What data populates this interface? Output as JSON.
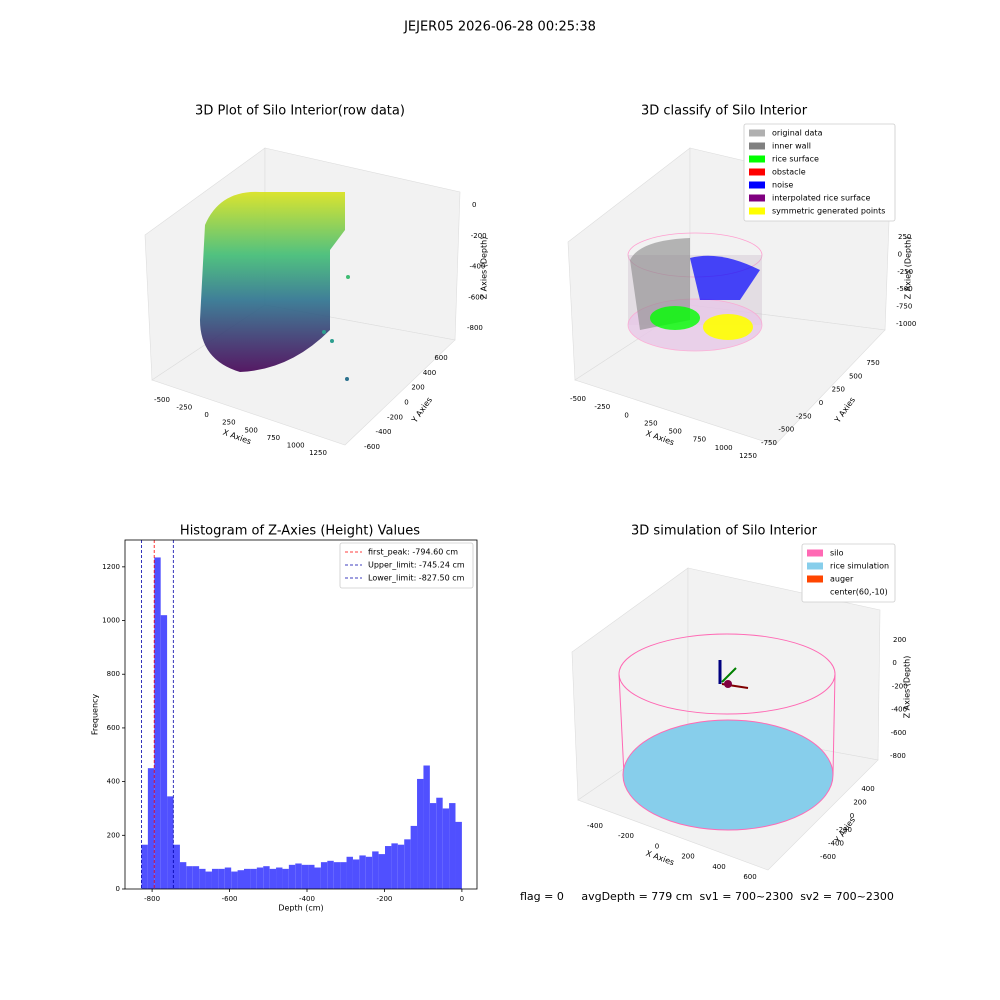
{
  "title": "JEJER05 2026-06-28 00:25:38",
  "chart_data": [
    {
      "type": "scatter3d",
      "title": "3D Plot of Silo Interior(row data)",
      "x_label": "X Axies",
      "y_label": "Y Axies",
      "z_label": "Z Axies (Depth)",
      "xticks": [
        -500,
        -250,
        0,
        250,
        500,
        750,
        1000,
        1250
      ],
      "yticks": [
        -600,
        -400,
        -200,
        0,
        200,
        400,
        600
      ],
      "zticks": [
        -800,
        -600,
        -400,
        -200,
        0
      ]
    },
    {
      "type": "scatter3d",
      "title": "3D classify of Silo Interior",
      "x_label": "X Axies",
      "y_label": "Y Axies",
      "z_label": "Z Axies (Depth)",
      "xticks": [
        -500,
        -250,
        0,
        250,
        500,
        750,
        1000,
        1250
      ],
      "yticks": [
        -750,
        -500,
        -250,
        0,
        250,
        500,
        750
      ],
      "zticks": [
        -1000,
        -750,
        -500,
        -250,
        0,
        250
      ],
      "legend": [
        {
          "name": "original data",
          "color": "#b0b0b0"
        },
        {
          "name": "inner wall",
          "color": "#808080"
        },
        {
          "name": "rice surface",
          "color": "#00ff00"
        },
        {
          "name": "obstacle",
          "color": "#ff0000"
        },
        {
          "name": "noise",
          "color": "#0000ff"
        },
        {
          "name": "interpolated rice surface",
          "color": "#800080"
        },
        {
          "name": "symmetric generated points",
          "color": "#ffff00"
        }
      ]
    },
    {
      "type": "histogram",
      "title": "Histogram of Z-Axies (Height) Values",
      "x_label": "Depth (cm)",
      "y_label": "Frequency",
      "color": "#5050ff",
      "bins": [
        -827.5,
        -810.95,
        -794.4,
        -777.85,
        -761.3,
        -744.75,
        -728.2,
        -711.65,
        -695.1,
        -678.55,
        -662.0,
        -645.45,
        -628.9,
        -612.35,
        -595.8,
        -579.25,
        -562.7,
        -546.15,
        -529.6,
        -513.05,
        -496.5,
        -479.95,
        -463.4,
        -446.85,
        -430.3,
        -413.75,
        -397.2,
        -380.65,
        -364.1,
        -347.55,
        -331.0,
        -314.45,
        -297.9,
        -281.35,
        -264.8,
        -248.25,
        -231.7,
        -215.15,
        -198.6,
        -182.05,
        -165.5,
        -148.95,
        -132.4,
        -115.85,
        -99.3,
        -82.75,
        -66.2,
        -49.65,
        -33.1,
        -16.55,
        0.0
      ],
      "counts": [
        165,
        450,
        1235,
        1020,
        345,
        165,
        100,
        85,
        85,
        75,
        65,
        75,
        75,
        80,
        65,
        70,
        75,
        75,
        80,
        85,
        75,
        80,
        75,
        90,
        95,
        90,
        90,
        80,
        100,
        105,
        100,
        100,
        120,
        110,
        125,
        120,
        140,
        130,
        160,
        170,
        165,
        185,
        235,
        410,
        460,
        320,
        340,
        300,
        320,
        250
      ],
      "xlim": [
        -870,
        39
      ],
      "ylim": [
        0,
        1300
      ],
      "xticks": [
        -800,
        -600,
        -400,
        -200,
        0
      ],
      "yticks": [
        0,
        200,
        400,
        600,
        800,
        1000,
        1200
      ],
      "lines": [
        {
          "name": "first_peak: -794.60 cm",
          "value": -794.6,
          "color": "#ff0000"
        },
        {
          "name": "Upper_limit: -745.24 cm",
          "value": -745.24,
          "color": "#0000aa"
        },
        {
          "name": "Lower_limit: -827.50 cm",
          "value": -827.5,
          "color": "#0000aa"
        }
      ]
    },
    {
      "type": "surface3d",
      "title": "3D simulation of Silo Interior",
      "x_label": "X Axies",
      "y_label": "Y Axies",
      "z_label": "Z Axies (Depth)",
      "xticks": [
        -400,
        -200,
        0,
        200,
        400,
        600
      ],
      "yticks": [
        -600,
        -400,
        -200,
        0,
        200,
        400
      ],
      "zticks": [
        -800,
        -600,
        -400,
        -200,
        0,
        200
      ],
      "legend": [
        {
          "name": "silo",
          "color": "#ff69b4"
        },
        {
          "name": "rice simulation",
          "color": "#87ceeb"
        },
        {
          "name": "auger",
          "color": "#ff4500"
        },
        {
          "name": "center(60,-10)",
          "color": "#ffffff"
        }
      ]
    }
  ],
  "footer": "flag = 0     avgDepth = 779 cm  sv1 = 700~2300  sv2 = 700~2300"
}
